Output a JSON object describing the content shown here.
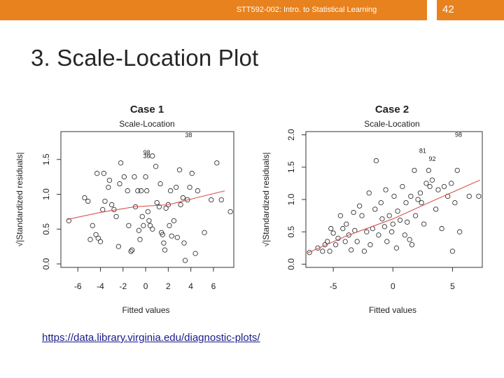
{
  "header": {
    "course": "STT592-002: Intro. to Statistical Learning",
    "slide_number": "42"
  },
  "slide_title": "3. Scale-Location Plot",
  "source_link": "https://data.library.virginia.edu/diagnostic-plots/",
  "colors": {
    "header_bar": "#e8821e",
    "trend_line": "#d9534f",
    "points": "#333333"
  },
  "chart_data": [
    {
      "type": "scatter",
      "title": "Case 1",
      "subtitle": "Scale-Location",
      "xlabel": "Fitted values",
      "ylabel": "√|Standardized residuals|",
      "xlim": [
        -7.5,
        7.8
      ],
      "ylim": [
        -0.05,
        1.9
      ],
      "xticks": [
        -6,
        -4,
        -2,
        0,
        2,
        4,
        6
      ],
      "yticks": [
        0.0,
        0.5,
        1.0,
        1.5
      ],
      "annotations": [
        {
          "label": "38",
          "x": 3.8,
          "y": 1.85
        },
        {
          "label": "98",
          "x": 0.1,
          "y": 1.6
        },
        {
          "label": "36",
          "x": 0.1,
          "y": 1.55
        }
      ],
      "trend": [
        [
          -6.9,
          0.64
        ],
        [
          -4,
          0.74
        ],
        [
          -1,
          0.82
        ],
        [
          2,
          0.85
        ],
        [
          4.5,
          0.95
        ],
        [
          7.0,
          1.05
        ]
      ],
      "points": [
        [
          -6.8,
          0.62
        ],
        [
          -5.4,
          0.95
        ],
        [
          -5.1,
          0.9
        ],
        [
          -4.7,
          0.55
        ],
        [
          -4.9,
          0.35
        ],
        [
          -4.4,
          0.42
        ],
        [
          -4.2,
          0.37
        ],
        [
          -4.0,
          0.32
        ],
        [
          -3.8,
          0.78
        ],
        [
          -3.6,
          0.9
        ],
        [
          -4.3,
          1.3
        ],
        [
          -3.7,
          1.3
        ],
        [
          -3.3,
          1.1
        ],
        [
          -3.2,
          1.2
        ],
        [
          -3.0,
          0.85
        ],
        [
          -2.8,
          0.78
        ],
        [
          -2.6,
          0.68
        ],
        [
          -2.4,
          0.25
        ],
        [
          -2.2,
          1.45
        ],
        [
          -2.3,
          1.15
        ],
        [
          -1.9,
          1.25
        ],
        [
          -1.6,
          1.05
        ],
        [
          -1.5,
          0.55
        ],
        [
          -1.3,
          0.18
        ],
        [
          -1.2,
          0.2
        ],
        [
          -1.0,
          1.25
        ],
        [
          -0.9,
          0.82
        ],
        [
          -0.7,
          1.05
        ],
        [
          -0.6,
          0.48
        ],
        [
          -0.5,
          0.35
        ],
        [
          -0.4,
          1.05
        ],
        [
          -0.3,
          0.68
        ],
        [
          -0.2,
          0.55
        ],
        [
          0.0,
          1.25
        ],
        [
          0.1,
          1.05
        ],
        [
          0.2,
          0.75
        ],
        [
          0.3,
          0.62
        ],
        [
          0.4,
          0.55
        ],
        [
          0.6,
          0.5
        ],
        [
          0.6,
          1.55
        ],
        [
          0.9,
          1.4
        ],
        [
          1.0,
          0.88
        ],
        [
          1.2,
          0.82
        ],
        [
          1.3,
          1.15
        ],
        [
          1.4,
          0.45
        ],
        [
          1.5,
          0.42
        ],
        [
          1.6,
          0.3
        ],
        [
          1.7,
          0.2
        ],
        [
          1.8,
          0.8
        ],
        [
          2.0,
          0.85
        ],
        [
          2.1,
          0.55
        ],
        [
          2.2,
          1.05
        ],
        [
          2.3,
          0.4
        ],
        [
          2.5,
          0.62
        ],
        [
          2.7,
          1.1
        ],
        [
          2.8,
          0.38
        ],
        [
          3.0,
          1.35
        ],
        [
          3.1,
          0.85
        ],
        [
          3.3,
          0.95
        ],
        [
          3.4,
          0.3
        ],
        [
          3.5,
          0.05
        ],
        [
          3.7,
          0.92
        ],
        [
          3.9,
          1.1
        ],
        [
          4.1,
          1.3
        ],
        [
          4.4,
          0.15
        ],
        [
          4.6,
          1.05
        ],
        [
          5.2,
          0.45
        ],
        [
          5.8,
          0.92
        ],
        [
          6.3,
          1.45
        ],
        [
          6.7,
          0.92
        ],
        [
          7.5,
          0.75
        ]
      ]
    },
    {
      "type": "scatter",
      "title": "Case 2",
      "subtitle": "Scale-Location",
      "xlabel": "Fitted values",
      "ylabel": "√|Standardized residuals|",
      "xlim": [
        -7.3,
        7.5
      ],
      "ylim": [
        -0.05,
        2.05
      ],
      "xticks": [
        -5,
        0,
        5
      ],
      "yticks": [
        0.0,
        0.5,
        1.0,
        1.5,
        2.0
      ],
      "annotations": [
        {
          "label": "98",
          "x": 5.5,
          "y": 2.0
        },
        {
          "label": "81",
          "x": 2.5,
          "y": 1.75
        },
        {
          "label": "92",
          "x": 3.3,
          "y": 1.63
        }
      ],
      "trend": [
        [
          -7.2,
          0.17
        ],
        [
          -4,
          0.43
        ],
        [
          0,
          0.7
        ],
        [
          3,
          0.95
        ],
        [
          7.3,
          1.3
        ]
      ],
      "points": [
        [
          -7.0,
          0.18
        ],
        [
          -6.3,
          0.25
        ],
        [
          -5.9,
          0.2
        ],
        [
          -5.7,
          0.3
        ],
        [
          -5.5,
          0.35
        ],
        [
          -5.3,
          0.2
        ],
        [
          -5.2,
          0.55
        ],
        [
          -5.0,
          0.48
        ],
        [
          -4.8,
          0.3
        ],
        [
          -4.6,
          0.4
        ],
        [
          -4.4,
          0.75
        ],
        [
          -4.2,
          0.55
        ],
        [
          -4.0,
          0.35
        ],
        [
          -3.9,
          0.62
        ],
        [
          -3.7,
          0.45
        ],
        [
          -3.5,
          0.22
        ],
        [
          -3.3,
          0.8
        ],
        [
          -3.2,
          0.52
        ],
        [
          -3.0,
          0.35
        ],
        [
          -2.8,
          0.9
        ],
        [
          -2.6,
          0.75
        ],
        [
          -2.4,
          0.2
        ],
        [
          -2.2,
          0.5
        ],
        [
          -2.0,
          1.1
        ],
        [
          -1.9,
          0.3
        ],
        [
          -1.7,
          0.55
        ],
        [
          -1.5,
          0.85
        ],
        [
          -1.4,
          1.6
        ],
        [
          -1.2,
          0.45
        ],
        [
          -1.0,
          0.95
        ],
        [
          -0.9,
          0.7
        ],
        [
          -0.7,
          0.58
        ],
        [
          -0.6,
          1.15
        ],
        [
          -0.5,
          0.35
        ],
        [
          -0.3,
          0.75
        ],
        [
          -0.1,
          0.5
        ],
        [
          0.0,
          0.62
        ],
        [
          0.1,
          1.05
        ],
        [
          0.3,
          0.25
        ],
        [
          0.4,
          0.82
        ],
        [
          0.6,
          0.68
        ],
        [
          0.8,
          1.2
        ],
        [
          1.0,
          0.45
        ],
        [
          1.1,
          0.95
        ],
        [
          1.2,
          0.65
        ],
        [
          1.4,
          0.38
        ],
        [
          1.5,
          1.05
        ],
        [
          1.6,
          0.3
        ],
        [
          1.8,
          1.45
        ],
        [
          1.9,
          0.75
        ],
        [
          2.1,
          1.0
        ],
        [
          2.3,
          1.1
        ],
        [
          2.4,
          0.95
        ],
        [
          2.6,
          0.62
        ],
        [
          2.8,
          1.25
        ],
        [
          3.0,
          1.45
        ],
        [
          3.1,
          1.2
        ],
        [
          3.3,
          1.3
        ],
        [
          3.6,
          0.85
        ],
        [
          3.8,
          1.15
        ],
        [
          4.1,
          0.55
        ],
        [
          4.3,
          1.2
        ],
        [
          4.6,
          1.05
        ],
        [
          4.9,
          1.25
        ],
        [
          5.0,
          0.2
        ],
        [
          5.2,
          0.95
        ],
        [
          5.4,
          1.45
        ],
        [
          5.6,
          0.5
        ],
        [
          6.4,
          1.05
        ],
        [
          7.2,
          1.05
        ]
      ]
    }
  ]
}
